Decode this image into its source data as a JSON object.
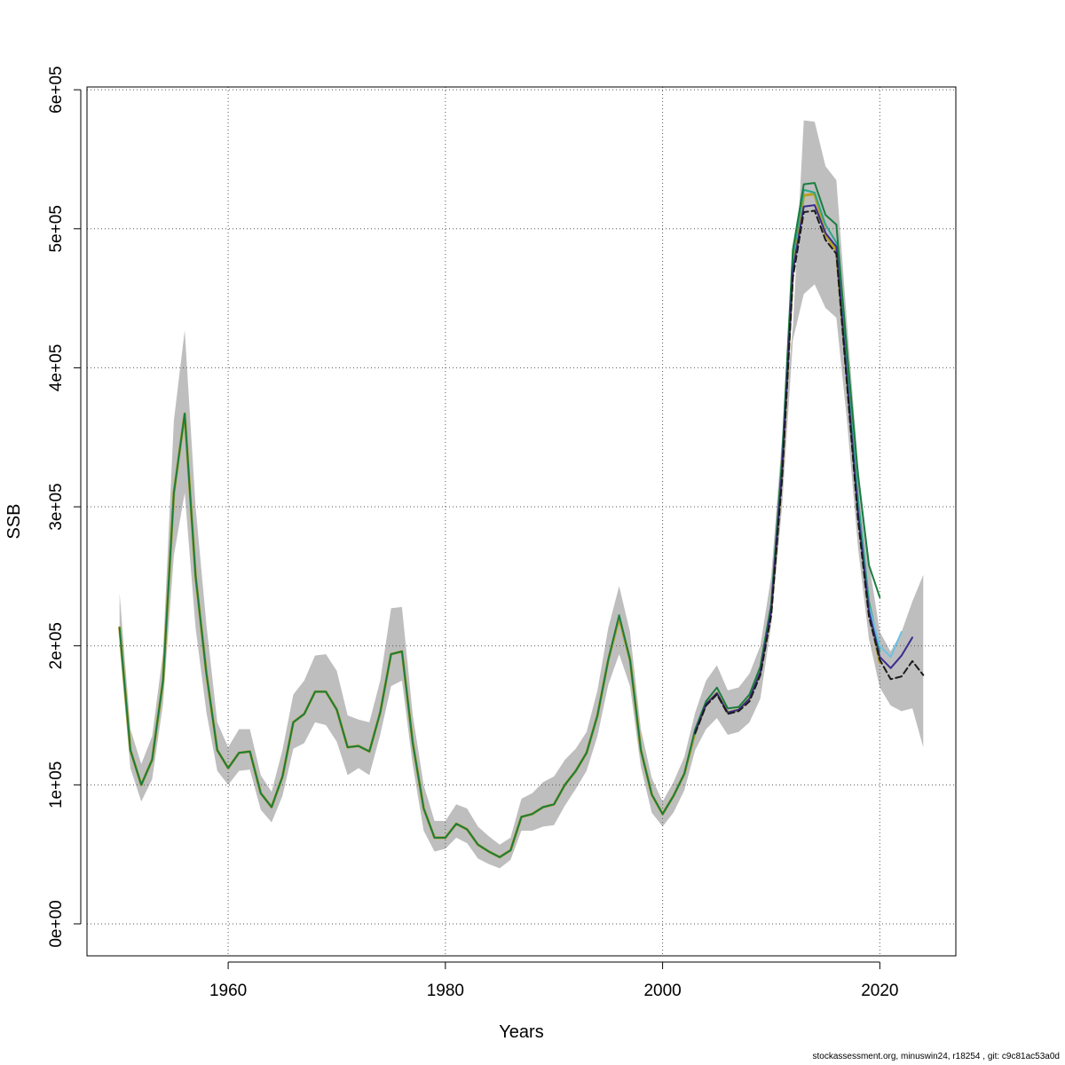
{
  "chart_data": {
    "type": "line",
    "xlabel": "Years",
    "ylabel": "SSB",
    "xlim": [
      1947,
      2027
    ],
    "ylim": [
      -23000,
      602000
    ],
    "x_ticks": [
      1960,
      1980,
      2000,
      2020
    ],
    "y_ticks": [
      0,
      100000,
      200000,
      300000,
      400000,
      500000,
      600000
    ],
    "y_tick_labels": [
      "0e+00",
      "1e+05",
      "2e+05",
      "3e+05",
      "4e+05",
      "5e+05",
      "6e+05"
    ],
    "grid": true,
    "colors": {
      "band": "#bebebe",
      "grid": "#888888",
      "line_base": "#b7a026",
      "line_teal": "#2aa58a",
      "line_green": "#1a7d3f",
      "line_cyan": "#6ec1e4",
      "line_purple": "#3a2d8f",
      "line_black": "#1a1a1a"
    },
    "confidence_band": {
      "x": [
        1950,
        1951,
        1952,
        1953,
        1954,
        1955,
        1956,
        1957,
        1958,
        1959,
        1960,
        1961,
        1962,
        1963,
        1964,
        1965,
        1966,
        1967,
        1968,
        1969,
        1970,
        1971,
        1972,
        1973,
        1974,
        1975,
        1976,
        1977,
        1978,
        1979,
        1980,
        1981,
        1982,
        1983,
        1984,
        1985,
        1986,
        1987,
        1988,
        1989,
        1990,
        1991,
        1992,
        1993,
        1994,
        1995,
        1996,
        1997,
        1998,
        1999,
        2000,
        2001,
        2002,
        2003,
        2004,
        2005,
        2006,
        2007,
        2008,
        2009,
        2010,
        2011,
        2012,
        2013,
        2014,
        2015,
        2016,
        2017,
        2018,
        2019,
        2020,
        2021,
        2022,
        2023,
        2024
      ],
      "upper": [
        238000,
        140000,
        115000,
        135000,
        195000,
        362000,
        427000,
        300000,
        215000,
        145000,
        127000,
        140000,
        140000,
        107000,
        95000,
        125000,
        165000,
        175000,
        193000,
        194000,
        182000,
        150000,
        147000,
        145000,
        175000,
        227000,
        228000,
        150000,
        100000,
        74000,
        74000,
        86000,
        83000,
        70000,
        63000,
        57000,
        62000,
        90000,
        94000,
        102000,
        106000,
        118000,
        126000,
        138000,
        168000,
        213000,
        243000,
        210000,
        140000,
        105000,
        88000,
        102000,
        120000,
        152000,
        175000,
        186000,
        168000,
        170000,
        180000,
        200000,
        250000,
        350000,
        430000,
        578000,
        577000,
        545000,
        535000,
        430000,
        330000,
        260000,
        210000,
        196000,
        210000,
        232000,
        251000
      ],
      "lower": [
        200000,
        112000,
        88000,
        104000,
        158000,
        265000,
        310000,
        213000,
        152000,
        110000,
        100000,
        110000,
        111000,
        82000,
        73000,
        92000,
        126000,
        130000,
        145000,
        143000,
        131000,
        107000,
        112000,
        107000,
        136000,
        171000,
        175000,
        114000,
        67000,
        52000,
        54000,
        62000,
        58000,
        47000,
        43000,
        40000,
        46000,
        67000,
        67000,
        70000,
        71000,
        85000,
        97000,
        110000,
        135000,
        172000,
        194000,
        171000,
        113000,
        80000,
        70000,
        80000,
        96000,
        125000,
        140000,
        148000,
        136000,
        138000,
        145000,
        162000,
        215000,
        300000,
        420000,
        453000,
        460000,
        443000,
        436000,
        360000,
        270000,
        205000,
        170000,
        157000,
        153000,
        155000,
        127000
      ]
    },
    "series": [
      {
        "x": [
          1950,
          1951,
          1952,
          1953,
          1954,
          1955,
          1956,
          1957,
          1958,
          1959,
          1960,
          1961,
          1962,
          1963,
          1964,
          1965,
          1966,
          1967,
          1968,
          1969,
          1970,
          1971,
          1972,
          1973,
          1974,
          1975,
          1976,
          1977,
          1978,
          1979,
          1980,
          1981,
          1982,
          1983,
          1984,
          1985,
          1986,
          1987,
          1988,
          1989,
          1990,
          1991,
          1992,
          1993,
          1994,
          1995,
          1996,
          1997,
          1998,
          1999,
          2000,
          2001,
          2002,
          2003,
          2004,
          2005,
          2006,
          2007,
          2008,
          2009,
          2010,
          2011,
          2012,
          2013,
          2014,
          2015,
          2016,
          2017,
          2018,
          2019,
          2020
        ],
        "values": [
          213000,
          125000,
          100000,
          118000,
          175000,
          310000,
          367000,
          250000,
          180000,
          125000,
          112000,
          123000,
          124000,
          94000,
          84000,
          106000,
          145000,
          151000,
          167000,
          167000,
          154000,
          127000,
          128000,
          124000,
          152000,
          194000,
          196000,
          130000,
          83000,
          62000,
          62000,
          72000,
          68000,
          57000,
          52000,
          48000,
          53000,
          77000,
          79000,
          84000,
          86000,
          100000,
          110000,
          123000,
          150000,
          190000,
          220000,
          190000,
          125000,
          93000,
          79000,
          92000,
          108000,
          138000,
          158000,
          166000,
          152000,
          154000,
          162000,
          181000,
          226000,
          326000,
          470000,
          524000,
          525000,
          496000,
          484000,
          391000,
          297000,
          225000,
          188000
        ]
      },
      {
        "x": [
          2011,
          2012,
          2013,
          2014,
          2015,
          2016,
          2017,
          2018,
          2019,
          2020
        ],
        "values": [
          330000,
          480000,
          528000,
          526000,
          503000,
          490000,
          396000,
          305000,
          232000,
          196000
        ]
      },
      {
        "x": [
          1950,
          1951,
          1952,
          1953,
          1954,
          1955,
          1956,
          1957,
          1958,
          1959,
          1960,
          1961,
          1962,
          1963,
          1964,
          1965,
          1966,
          1967,
          1968,
          1969,
          1970,
          1971,
          1972,
          1973,
          1974,
          1975,
          1976,
          1977,
          1978,
          1979,
          1980,
          1981,
          1982,
          1983,
          1984,
          1985,
          1986,
          1987,
          1988,
          1989,
          1990,
          1991,
          1992,
          1993,
          1994,
          1995,
          1996,
          1997,
          1998,
          1999,
          2000,
          2001,
          2002,
          2003,
          2004,
          2005,
          2006,
          2007,
          2008,
          2009,
          2010,
          2011,
          2012,
          2013,
          2014,
          2015,
          2016,
          2017,
          2018,
          2019,
          2020
        ],
        "values": [
          213000,
          125000,
          100000,
          118000,
          175000,
          310000,
          367000,
          250000,
          180000,
          125000,
          112000,
          123000,
          124000,
          94000,
          84000,
          106000,
          145000,
          151000,
          167000,
          167000,
          154000,
          127000,
          128000,
          124000,
          152000,
          194000,
          196000,
          130000,
          83000,
          62000,
          62000,
          72000,
          68000,
          57000,
          52000,
          48000,
          53000,
          77000,
          79000,
          84000,
          86000,
          100000,
          110000,
          123000,
          150000,
          190000,
          222000,
          190000,
          125000,
          93000,
          79000,
          92000,
          108000,
          140000,
          160000,
          170000,
          155000,
          156000,
          165000,
          185000,
          230000,
          335000,
          485000,
          532000,
          533000,
          510000,
          503000,
          410000,
          322000,
          258000,
          235000
        ]
      },
      {
        "x": [
          2019,
          2020,
          2021,
          2022
        ],
        "values": [
          228000,
          200000,
          192000,
          210000
        ]
      },
      {
        "x": [
          2003,
          2004,
          2005,
          2006,
          2007,
          2008,
          2009,
          2010,
          2011,
          2012,
          2013,
          2014,
          2015,
          2016,
          2017,
          2018,
          2019,
          2020,
          2021,
          2022,
          2023
        ],
        "values": [
          138000,
          158000,
          166000,
          152000,
          154000,
          162000,
          181000,
          226000,
          326000,
          470000,
          516000,
          517000,
          497000,
          487000,
          390000,
          295000,
          225000,
          192000,
          184000,
          193000,
          206000
        ]
      },
      {
        "x": [
          2003,
          2004,
          2005,
          2006,
          2007,
          2008,
          2009,
          2010,
          2011,
          2012,
          2013,
          2014,
          2015,
          2016,
          2017,
          2018,
          2019,
          2020,
          2021,
          2022,
          2023,
          2024
        ],
        "values": [
          137000,
          157000,
          165000,
          151000,
          153000,
          160000,
          179000,
          222000,
          320000,
          465000,
          512000,
          513000,
          492000,
          482000,
          386000,
          290000,
          221000,
          190000,
          176000,
          178000,
          189000,
          179000
        ]
      }
    ]
  },
  "footer": {
    "note": "stockassessment.org, minuswin24, r18254 , git: c9c81ac53a0d"
  }
}
